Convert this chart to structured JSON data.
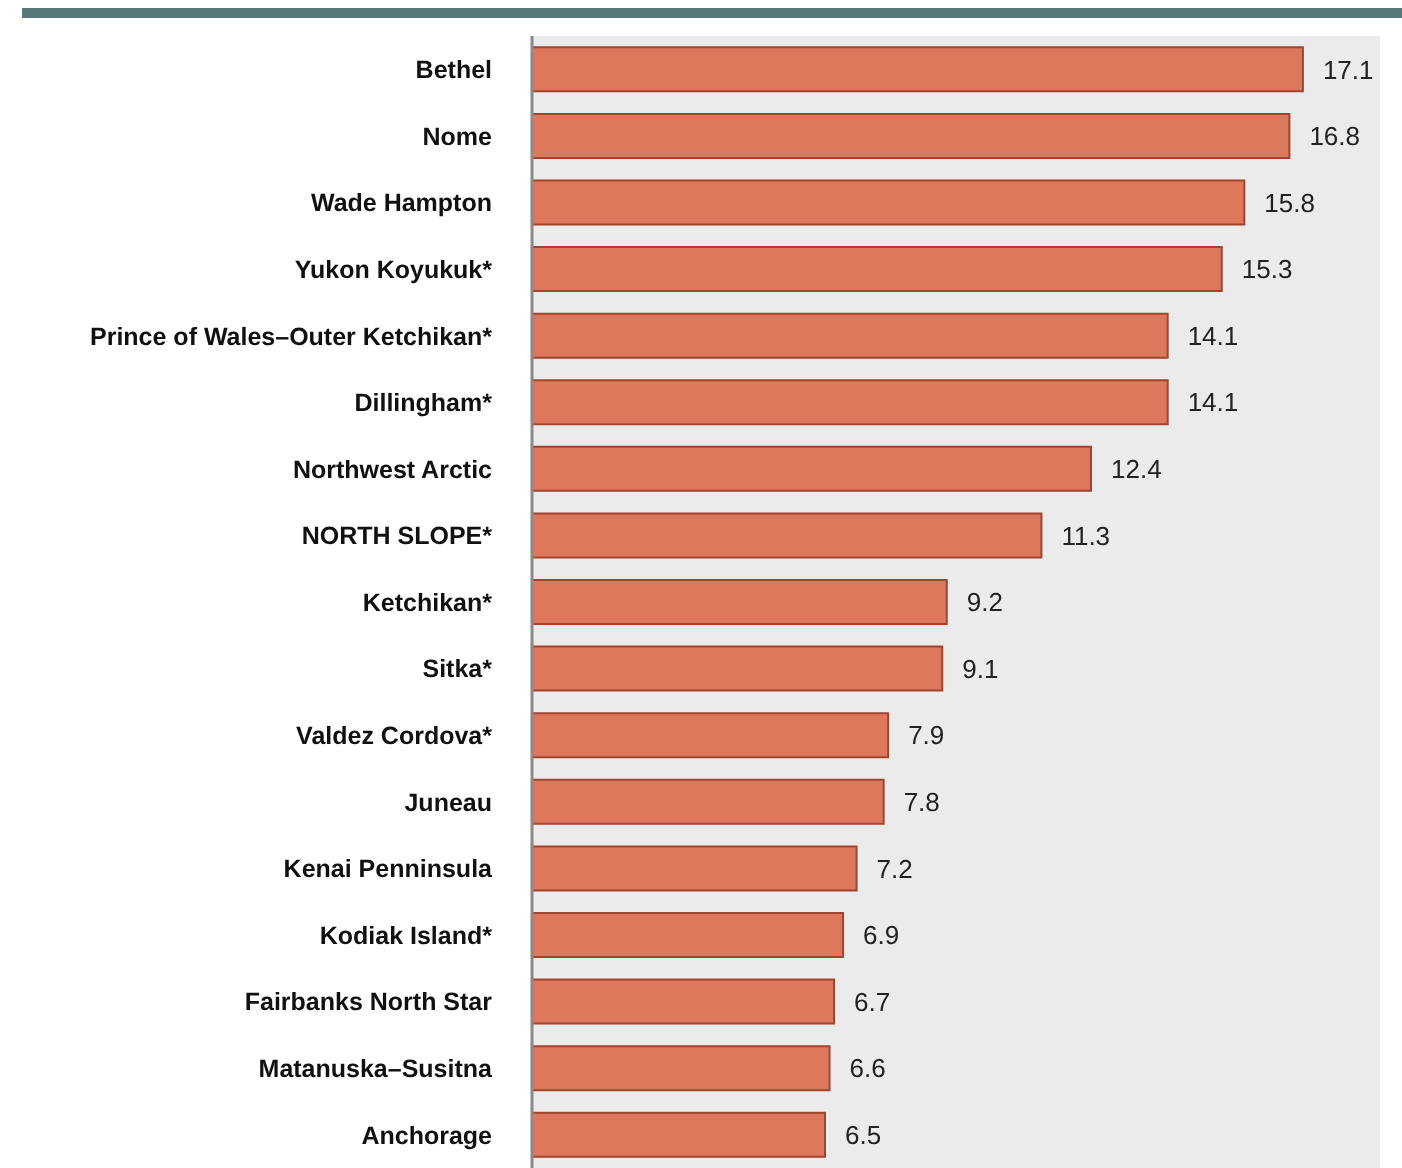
{
  "chart_data": {
    "type": "bar",
    "orientation": "horizontal",
    "categories": [
      "Bethel",
      "Nome",
      "Wade Hampton",
      "Yukon Koyukuk*",
      "Prince of Wales–Outer Ketchikan*",
      "Dillingham*",
      "Northwest Arctic",
      "NORTH SLOPE*",
      "Ketchikan*",
      "Sitka*",
      "Valdez Cordova*",
      "Juneau",
      "Kenai Penninsula",
      "Kodiak Island*",
      "Fairbanks North Star",
      "Matanuska–Susitna",
      "Anchorage"
    ],
    "values": [
      17.1,
      16.8,
      15.8,
      15.3,
      14.1,
      14.1,
      12.4,
      11.3,
      9.2,
      9.1,
      7.9,
      7.8,
      7.2,
      6.9,
      6.7,
      6.6,
      6.5
    ],
    "color": "#dd785d",
    "data_labels": true,
    "tick_labels": "y"
  }
}
